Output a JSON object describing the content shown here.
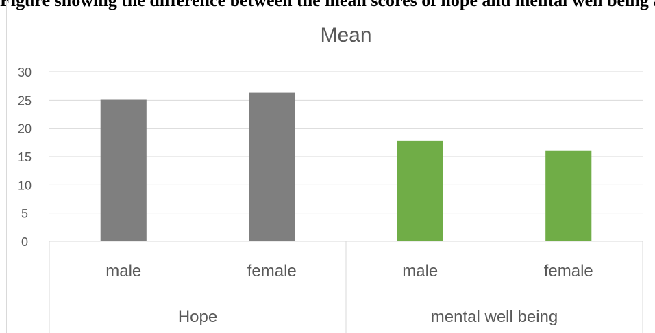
{
  "page_header": "Figure showing the difference between the mean scores of hope and mental well being among the genders",
  "chart_data": {
    "type": "bar",
    "title": "Mean",
    "xlabel": "",
    "ylabel": "",
    "ylim": [
      0,
      30
    ],
    "yticks": [
      0,
      5,
      10,
      15,
      20,
      25,
      30
    ],
    "grid": true,
    "groups": [
      {
        "label": "Hope",
        "color": "#7f7f7f",
        "categories": [
          "male",
          "female"
        ],
        "values": [
          25.1,
          26.3
        ]
      },
      {
        "label": "mental well being",
        "color": "#70ad47",
        "categories": [
          "male",
          "female"
        ],
        "values": [
          17.8,
          16
        ]
      }
    ]
  }
}
